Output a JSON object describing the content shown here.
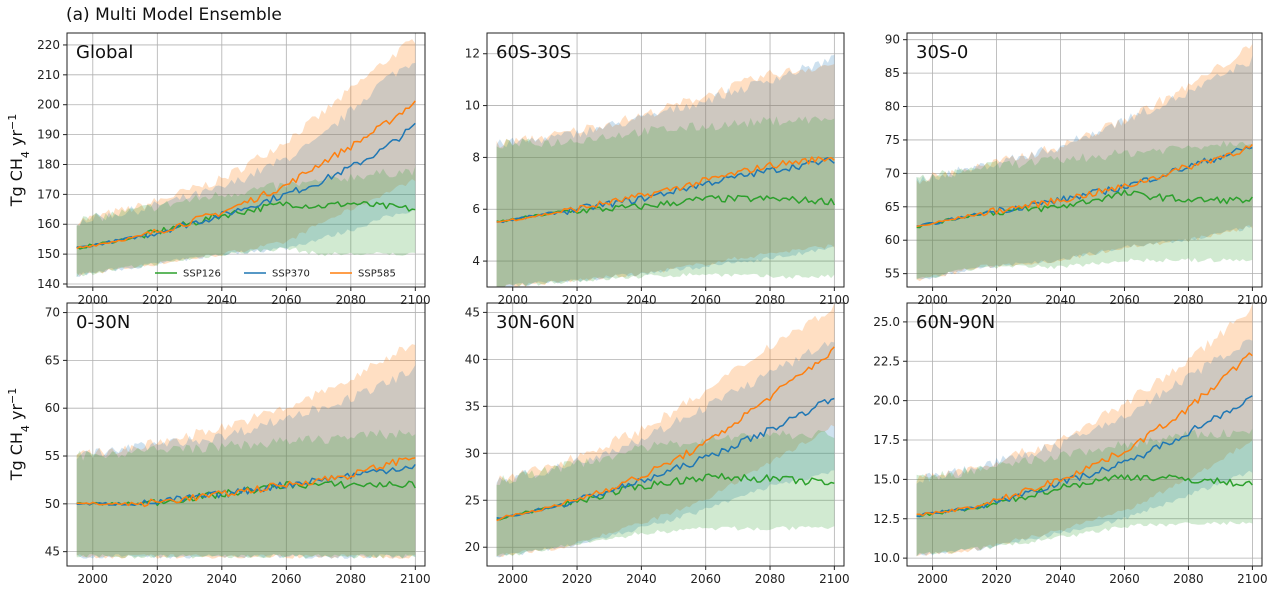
{
  "figure_title": "(a) Multi Model Ensemble",
  "ylabel_prefix": "Tg CH",
  "ylabel_sub": "4",
  "ylabel_suffix": " yr",
  "ylabel_sup": "−1",
  "colors": {
    "SSP126": "#2ca02c",
    "SSP370": "#1f77b4",
    "SSP585": "#ff7f0e"
  },
  "chart_data": [
    {
      "type": "line",
      "title": "Global",
      "xlim": [
        1992,
        2103
      ],
      "ylim": [
        139,
        224
      ],
      "xticks": [
        2000,
        2020,
        2040,
        2060,
        2080,
        2100
      ],
      "yticks": [
        140,
        150,
        160,
        170,
        180,
        190,
        200,
        210,
        220
      ],
      "legend": "bottom",
      "series": [
        {
          "name": "SSP126",
          "x": [
            1995,
            2015,
            2040,
            2060,
            2070,
            2080,
            2090,
            2100
          ],
          "y": [
            152,
            156,
            163,
            167,
            166,
            167,
            166,
            165
          ],
          "lower": [
            143,
            146,
            150,
            152,
            150,
            150,
            150,
            150
          ],
          "upper": [
            161,
            165,
            170,
            173,
            174,
            176,
            177,
            178
          ]
        },
        {
          "name": "SSP370",
          "x": [
            1995,
            2015,
            2040,
            2060,
            2070,
            2080,
            2090,
            2100
          ],
          "y": [
            152,
            156,
            163,
            170,
            174,
            179,
            185,
            193
          ],
          "lower": [
            143,
            146,
            150,
            152,
            155,
            158,
            162,
            165
          ],
          "upper": [
            161,
            165,
            172,
            182,
            188,
            198,
            208,
            215
          ]
        },
        {
          "name": "SSP585",
          "x": [
            1995,
            2015,
            2040,
            2060,
            2070,
            2080,
            2090,
            2100
          ],
          "y": [
            152,
            156,
            164,
            173,
            180,
            186,
            193,
            201
          ],
          "lower": [
            143,
            146,
            150,
            154,
            160,
            165,
            170,
            175
          ],
          "upper": [
            161,
            166,
            175,
            188,
            196,
            205,
            214,
            222
          ]
        }
      ]
    },
    {
      "type": "line",
      "title": "60S-30S",
      "xlim": [
        1992,
        2103
      ],
      "ylim": [
        3.0,
        12.8
      ],
      "xticks": [
        2000,
        2020,
        2040,
        2060,
        2080,
        2100
      ],
      "yticks": [
        4,
        6,
        8,
        10,
        12
      ],
      "series": [
        {
          "name": "SSP126",
          "x": [
            1995,
            2015,
            2040,
            2060,
            2080,
            2100
          ],
          "y": [
            5.5,
            5.9,
            6.1,
            6.4,
            6.4,
            6.3
          ],
          "lower": [
            3.0,
            3.2,
            3.4,
            3.5,
            3.4,
            3.4
          ],
          "upper": [
            8.5,
            8.6,
            9.0,
            9.2,
            9.4,
            9.5
          ]
        },
        {
          "name": "SSP370",
          "x": [
            1995,
            2015,
            2040,
            2060,
            2080,
            2100
          ],
          "y": [
            5.5,
            5.9,
            6.4,
            7.0,
            7.5,
            7.9
          ],
          "lower": [
            3.0,
            3.2,
            3.5,
            3.8,
            4.1,
            4.5
          ],
          "upper": [
            8.5,
            8.8,
            9.5,
            10.2,
            11.0,
            11.8
          ]
        },
        {
          "name": "SSP585",
          "x": [
            1995,
            2015,
            2040,
            2060,
            2080,
            2100
          ],
          "y": [
            5.5,
            5.9,
            6.5,
            7.1,
            7.7,
            8.0
          ],
          "lower": [
            3.0,
            3.2,
            3.5,
            3.9,
            4.3,
            4.6
          ],
          "upper": [
            8.5,
            8.9,
            9.6,
            10.4,
            11.2,
            11.6
          ]
        }
      ]
    },
    {
      "type": "line",
      "title": "30S-0",
      "xlim": [
        1992,
        2103
      ],
      "ylim": [
        53,
        91
      ],
      "xticks": [
        2000,
        2020,
        2040,
        2060,
        2080,
        2100
      ],
      "yticks": [
        55,
        60,
        65,
        70,
        75,
        80,
        85,
        90
      ],
      "series": [
        {
          "name": "SSP126",
          "x": [
            1995,
            2015,
            2040,
            2060,
            2080,
            2100
          ],
          "y": [
            62,
            64,
            65,
            67,
            66,
            66
          ],
          "lower": [
            54,
            56,
            56,
            57,
            57,
            57
          ],
          "upper": [
            69,
            71,
            72,
            73,
            74,
            75
          ]
        },
        {
          "name": "SSP370",
          "x": [
            1995,
            2015,
            2040,
            2060,
            2080,
            2100
          ],
          "y": [
            62,
            64,
            66,
            68,
            71,
            74
          ],
          "lower": [
            54,
            56,
            57,
            59,
            60,
            62
          ],
          "upper": [
            69,
            71,
            74,
            78,
            82,
            87
          ]
        },
        {
          "name": "SSP585",
          "x": [
            1995,
            2015,
            2040,
            2060,
            2080,
            2100
          ],
          "y": [
            62,
            64,
            66,
            68,
            71,
            74
          ],
          "lower": [
            54,
            56,
            57,
            59,
            60,
            62
          ],
          "upper": [
            69,
            71,
            74,
            78,
            83,
            89
          ]
        }
      ]
    },
    {
      "type": "line",
      "title": "0-30N",
      "xlim": [
        1992,
        2103
      ],
      "ylim": [
        43.5,
        71
      ],
      "xticks": [
        2000,
        2020,
        2040,
        2060,
        2080,
        2100
      ],
      "yticks": [
        45,
        50,
        55,
        60,
        65,
        70
      ],
      "series": [
        {
          "name": "SSP126",
          "x": [
            1995,
            2015,
            2040,
            2060,
            2080,
            2100
          ],
          "y": [
            50,
            50,
            51,
            52,
            52,
            52
          ],
          "lower": [
            44.5,
            44.5,
            44.5,
            44.5,
            44.5,
            44.5
          ],
          "upper": [
            55,
            55.5,
            56,
            56.5,
            57,
            57.5
          ]
        },
        {
          "name": "SSP370",
          "x": [
            1995,
            2015,
            2040,
            2060,
            2080,
            2100
          ],
          "y": [
            50,
            50,
            51,
            52,
            53,
            54
          ],
          "lower": [
            44.5,
            44.5,
            44.5,
            44.5,
            44.5,
            44.5
          ],
          "upper": [
            55,
            56,
            57,
            59,
            61,
            64
          ]
        },
        {
          "name": "SSP585",
          "x": [
            1995,
            2015,
            2040,
            2060,
            2080,
            2100
          ],
          "y": [
            50,
            50,
            51,
            52,
            53,
            55
          ],
          "lower": [
            44.5,
            44.5,
            44.5,
            44.5,
            44.5,
            44.5
          ],
          "upper": [
            55,
            56,
            58,
            60,
            63,
            67
          ]
        }
      ]
    },
    {
      "type": "line",
      "title": "30N-60N",
      "xlim": [
        1992,
        2103
      ],
      "ylim": [
        18,
        46
      ],
      "xticks": [
        2000,
        2020,
        2040,
        2060,
        2080,
        2100
      ],
      "yticks": [
        20,
        25,
        30,
        35,
        40,
        45
      ],
      "series": [
        {
          "name": "SSP126",
          "x": [
            1995,
            2015,
            2040,
            2060,
            2080,
            2100
          ],
          "y": [
            23,
            24.5,
            26.5,
            27.5,
            27.3,
            26.8
          ],
          "lower": [
            19,
            20,
            21.5,
            22,
            22,
            22
          ],
          "upper": [
            27,
            28.5,
            30.5,
            31.5,
            32,
            32
          ]
        },
        {
          "name": "SSP370",
          "x": [
            1995,
            2015,
            2040,
            2060,
            2080,
            2100
          ],
          "y": [
            23,
            24.5,
            27,
            29.5,
            32.5,
            36
          ],
          "lower": [
            19,
            20,
            22,
            24,
            26.5,
            28
          ],
          "upper": [
            27,
            28.5,
            31.5,
            35,
            38.5,
            42
          ]
        },
        {
          "name": "SSP585",
          "x": [
            1995,
            2015,
            2040,
            2060,
            2080,
            2100
          ],
          "y": [
            23,
            24.5,
            27.5,
            31,
            36,
            41
          ],
          "lower": [
            19,
            20,
            22.5,
            25,
            29,
            33
          ],
          "upper": [
            27,
            29,
            32.5,
            36.5,
            41.5,
            45.5
          ]
        }
      ]
    },
    {
      "type": "line",
      "title": "60N-90N",
      "xlim": [
        1992,
        2103
      ],
      "ylim": [
        9.5,
        26.2
      ],
      "xticks": [
        2000,
        2020,
        2040,
        2060,
        2080,
        2100
      ],
      "yticks": [
        10.0,
        12.5,
        15.0,
        17.5,
        20.0,
        22.5,
        25.0
      ],
      "series": [
        {
          "name": "SSP126",
          "x": [
            1995,
            2015,
            2040,
            2060,
            2080,
            2100
          ],
          "y": [
            12.7,
            13.2,
            14.5,
            15.2,
            15.0,
            14.7
          ],
          "lower": [
            10.2,
            10.6,
            11.3,
            12.0,
            12.2,
            12.2
          ],
          "upper": [
            15.0,
            15.6,
            16.5,
            17.2,
            17.8,
            18.0
          ]
        },
        {
          "name": "SSP370",
          "x": [
            1995,
            2015,
            2040,
            2060,
            2080,
            2100
          ],
          "y": [
            12.7,
            13.3,
            14.8,
            16.0,
            18.0,
            20.2
          ],
          "lower": [
            10.2,
            10.6,
            11.6,
            12.5,
            14.0,
            15.5
          ],
          "upper": [
            15.0,
            15.8,
            17.2,
            19.0,
            21.5,
            24.0
          ]
        },
        {
          "name": "SSP585",
          "x": [
            1995,
            2015,
            2040,
            2060,
            2080,
            2100
          ],
          "y": [
            12.7,
            13.3,
            15.0,
            16.8,
            19.5,
            23.0
          ],
          "lower": [
            10.2,
            10.6,
            11.8,
            13.0,
            15.0,
            17.5
          ],
          "upper": [
            15.0,
            15.8,
            17.5,
            19.8,
            22.5,
            26.0
          ]
        }
      ]
    }
  ]
}
